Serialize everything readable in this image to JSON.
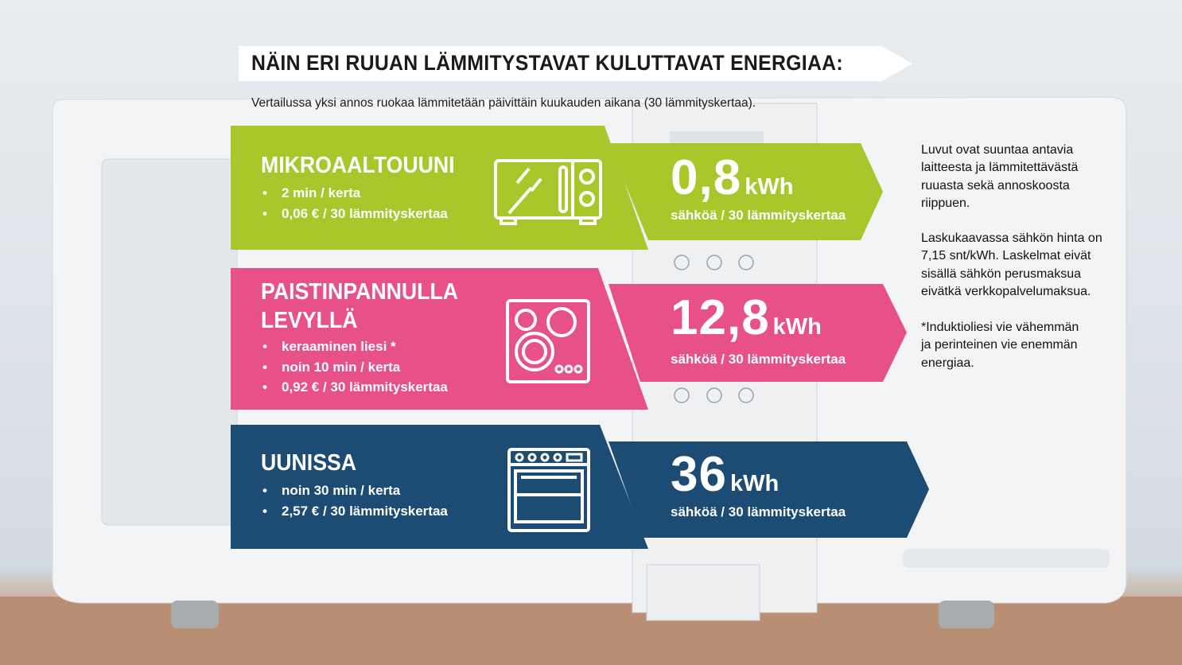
{
  "title": "NÄIN ERI RUUAN LÄMMITYSTAVAT KULUTTAVAT ENERGIAA:",
  "subtitle": "Vertailussa yksi annos ruokaa lämmitetään päivittäin kuukauden aikana (30 lämmityskertaa).",
  "colors": {
    "green": "#a9c62b",
    "pink": "#e8508a",
    "navy": "#1c4b73"
  },
  "panels": [
    {
      "title": "MIKROAALTOUUNI",
      "bullets": [
        "2 min / kerta",
        "0,06 € / 30 lämmityskertaa"
      ],
      "icon": "microwave-icon",
      "value": "0,8",
      "unit": "kWh",
      "caption": "sähköä / 30 lämmityskertaa"
    },
    {
      "title": "PAISTINPANNULLA",
      "title2": "LEVYLLÄ",
      "bullets": [
        "keraaminen liesi *",
        "noin 10 min / kerta",
        "0,92 € / 30 lämmityskertaa"
      ],
      "icon": "cooktop-icon",
      "value": "12,8",
      "unit": "kWh",
      "caption": "sähköä / 30 lämmityskertaa"
    },
    {
      "title": "UUNISSA",
      "bullets": [
        "noin 30 min / kerta",
        "2,57 € / 30 lämmityskertaa"
      ],
      "icon": "oven-icon",
      "value": "36",
      "unit": "kWh",
      "caption": "sähköä / 30 lämmityskertaa"
    }
  ],
  "notes": [
    "Luvut ovat suuntaa antavia\nlaitteesta ja lämmitettävästä\nruuasta sekä annoskoosta\nriippuen.",
    "Laskukaavassa sähkön hinta on\n7,15 snt/kWh. Laskelmat eivät\nsisällä sähkön perusmaksua\neivätkä verkkopalvelumaksua.",
    "*Induktioliesi vie vähemmän\nja perinteinen vie enemmän\nenergiaa."
  ]
}
